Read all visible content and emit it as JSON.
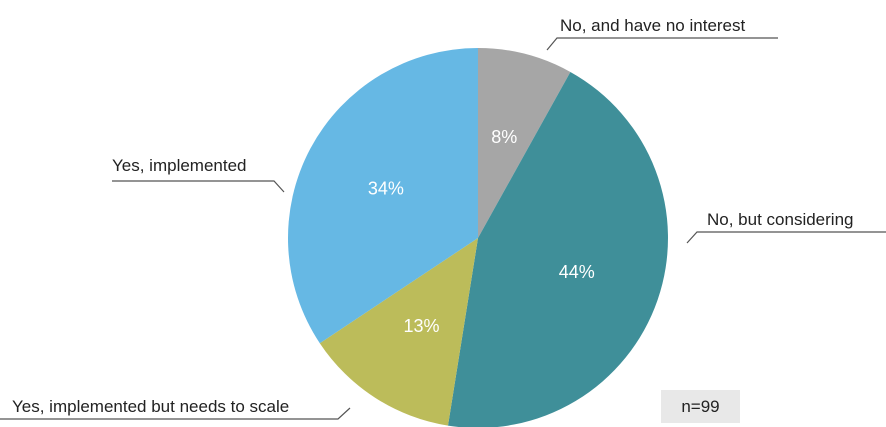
{
  "chart_data": {
    "type": "pie",
    "slices": [
      {
        "label": "No, and have no interest",
        "value": 8,
        "pct_label": "8%",
        "color": "#a6a6a6"
      },
      {
        "label": "No, but considering",
        "value": 44,
        "pct_label": "44%",
        "color": "#3f8f99"
      },
      {
        "label": "Yes, implemented but needs to scale",
        "value": 13,
        "pct_label": "13%",
        "color": "#bcbc5a"
      },
      {
        "label": "Yes, implemented",
        "value": 34,
        "pct_label": "34%",
        "color": "#66b8e4"
      }
    ],
    "note": "n=99"
  }
}
